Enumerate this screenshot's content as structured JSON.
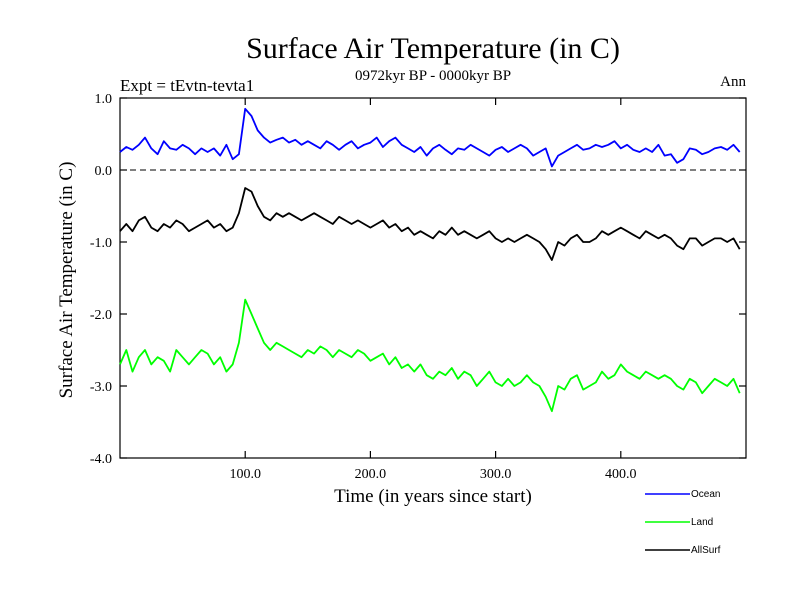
{
  "chart_data": {
    "type": "line",
    "title": "Surface Air Temperature (in C)",
    "subtitle": "0972kyr BP - 0000kyr BP",
    "expt_label": "Expt = tEvtn-tevta1",
    "season_label": "Ann",
    "xlabel": "Time (in years since start)",
    "ylabel": "Surface Air Temperature (in C)",
    "xlim": [
      0,
      500
    ],
    "ylim": [
      -4.0,
      1.0
    ],
    "x_ticks": [
      {
        "value": 100,
        "label": "100.0"
      },
      {
        "value": 200,
        "label": "200.0"
      },
      {
        "value": 300,
        "label": "300.0"
      },
      {
        "value": 400,
        "label": "400.0"
      }
    ],
    "y_ticks": [
      {
        "value": 1.0,
        "label": "1.0"
      },
      {
        "value": 0.0,
        "label": "0.0"
      },
      {
        "value": -1.0,
        "label": "-1.0"
      },
      {
        "value": -2.0,
        "label": "-2.0"
      },
      {
        "value": -3.0,
        "label": "-3.0"
      },
      {
        "value": -4.0,
        "label": "-4.0"
      }
    ],
    "zero_line": {
      "value": 0.0,
      "style": "dashed"
    },
    "legend_position": "bottom-right",
    "series": [
      {
        "name": "Ocean",
        "color": "#0000ff",
        "x_step": 5,
        "values": [
          0.25,
          0.32,
          0.28,
          0.35,
          0.45,
          0.3,
          0.22,
          0.4,
          0.3,
          0.28,
          0.35,
          0.3,
          0.22,
          0.3,
          0.25,
          0.3,
          0.2,
          0.35,
          0.15,
          0.22,
          0.85,
          0.75,
          0.55,
          0.45,
          0.38,
          0.42,
          0.45,
          0.38,
          0.42,
          0.35,
          0.4,
          0.35,
          0.3,
          0.4,
          0.35,
          0.28,
          0.35,
          0.4,
          0.3,
          0.35,
          0.38,
          0.45,
          0.32,
          0.4,
          0.45,
          0.35,
          0.3,
          0.25,
          0.32,
          0.2,
          0.3,
          0.35,
          0.28,
          0.22,
          0.3,
          0.28,
          0.35,
          0.3,
          0.25,
          0.2,
          0.28,
          0.32,
          0.25,
          0.3,
          0.35,
          0.3,
          0.2,
          0.25,
          0.3,
          0.05,
          0.2,
          0.25,
          0.3,
          0.35,
          0.28,
          0.3,
          0.35,
          0.32,
          0.35,
          0.4,
          0.3,
          0.35,
          0.28,
          0.25,
          0.3,
          0.25,
          0.35,
          0.2,
          0.22,
          0.1,
          0.15,
          0.3,
          0.28,
          0.22,
          0.25,
          0.3,
          0.32,
          0.28,
          0.35,
          0.25
        ]
      },
      {
        "name": "Land",
        "color": "#00ff00",
        "x_step": 5,
        "values": [
          -2.7,
          -2.5,
          -2.8,
          -2.6,
          -2.5,
          -2.7,
          -2.6,
          -2.65,
          -2.8,
          -2.5,
          -2.6,
          -2.7,
          -2.6,
          -2.5,
          -2.55,
          -2.7,
          -2.6,
          -2.8,
          -2.7,
          -2.4,
          -1.8,
          -2.0,
          -2.2,
          -2.4,
          -2.5,
          -2.4,
          -2.45,
          -2.5,
          -2.55,
          -2.6,
          -2.5,
          -2.55,
          -2.45,
          -2.5,
          -2.6,
          -2.5,
          -2.55,
          -2.6,
          -2.5,
          -2.55,
          -2.65,
          -2.6,
          -2.55,
          -2.7,
          -2.6,
          -2.75,
          -2.7,
          -2.8,
          -2.7,
          -2.85,
          -2.9,
          -2.8,
          -2.85,
          -2.75,
          -2.9,
          -2.8,
          -2.85,
          -3.0,
          -2.9,
          -2.8,
          -2.95,
          -3.0,
          -2.9,
          -3.0,
          -2.95,
          -2.85,
          -2.95,
          -3.0,
          -3.15,
          -3.35,
          -3.0,
          -3.05,
          -2.9,
          -2.85,
          -3.05,
          -3.0,
          -2.95,
          -2.8,
          -2.9,
          -2.85,
          -2.7,
          -2.8,
          -2.85,
          -2.9,
          -2.8,
          -2.85,
          -2.9,
          -2.85,
          -2.9,
          -3.0,
          -3.05,
          -2.9,
          -2.95,
          -3.1,
          -3.0,
          -2.9,
          -2.95,
          -3.0,
          -2.9,
          -3.1
        ]
      },
      {
        "name": "AllSurf",
        "color": "#000000",
        "x_step": 5,
        "values": [
          -0.85,
          -0.75,
          -0.85,
          -0.7,
          -0.65,
          -0.8,
          -0.85,
          -0.75,
          -0.8,
          -0.7,
          -0.75,
          -0.85,
          -0.8,
          -0.75,
          -0.7,
          -0.8,
          -0.75,
          -0.85,
          -0.8,
          -0.6,
          -0.25,
          -0.3,
          -0.5,
          -0.65,
          -0.7,
          -0.6,
          -0.65,
          -0.6,
          -0.65,
          -0.7,
          -0.65,
          -0.6,
          -0.65,
          -0.7,
          -0.75,
          -0.65,
          -0.7,
          -0.75,
          -0.7,
          -0.75,
          -0.8,
          -0.75,
          -0.7,
          -0.8,
          -0.75,
          -0.85,
          -0.8,
          -0.9,
          -0.85,
          -0.9,
          -0.95,
          -0.85,
          -0.9,
          -0.8,
          -0.9,
          -0.85,
          -0.9,
          -0.95,
          -0.9,
          -0.85,
          -0.95,
          -1.0,
          -0.95,
          -1.0,
          -0.95,
          -0.9,
          -0.95,
          -1.0,
          -1.1,
          -1.25,
          -1.0,
          -1.05,
          -0.95,
          -0.9,
          -1.0,
          -1.0,
          -0.95,
          -0.85,
          -0.9,
          -0.85,
          -0.8,
          -0.85,
          -0.9,
          -0.95,
          -0.85,
          -0.9,
          -0.95,
          -0.9,
          -0.95,
          -1.05,
          -1.1,
          -0.95,
          -0.95,
          -1.05,
          -1.0,
          -0.95,
          -0.95,
          -1.0,
          -0.95,
          -1.1
        ]
      }
    ]
  }
}
